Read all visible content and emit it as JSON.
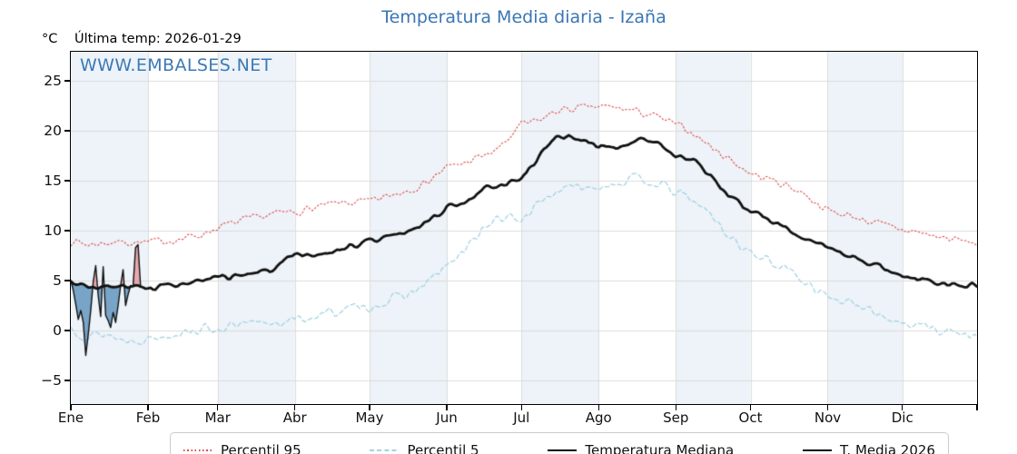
{
  "header": {
    "y_unit": "°C",
    "last_temp": "Última temp: 2026-01-29"
  },
  "watermark": "WWW.EMBALSES.NET",
  "colors": {
    "title": "#3a76b2",
    "watermark": "#3d79b5",
    "band": "#edf3f8",
    "grid": "#dcdcdc",
    "spine": "#000000",
    "tick_label": "#111111",
    "legend_border": "#cccccc",
    "p95": "#dd4b4b",
    "p5": "#a5d2e3",
    "median": "#111111",
    "t2026": "#111111",
    "fill_above": "rgba(224,80,90,0.45)",
    "fill_below": "rgba(70,130,180,0.70)"
  },
  "chart_data": {
    "type": "line",
    "title": "Temperatura Media diaria - Izaña",
    "x_axis": "day of year",
    "ylim": [
      -7.5,
      28.0
    ],
    "grid": true,
    "y_ticks": [
      25,
      20,
      15,
      10,
      5,
      0,
      -5
    ],
    "y_tick_labels": [
      "25",
      "20",
      "15",
      "10",
      "5",
      "0",
      "−5"
    ],
    "month_labels": [
      "Ene",
      "Feb",
      "Mar",
      "Abr",
      "May",
      "Jun",
      "Jul",
      "Ago",
      "Sep",
      "Oct",
      "Nov",
      "Dic"
    ],
    "month_start_days": [
      1,
      32,
      60,
      91,
      121,
      152,
      182,
      213,
      244,
      274,
      305,
      335
    ],
    "days_in_year": 365,
    "legend_position": "bottom",
    "series": [
      {
        "name": "Percentil 95",
        "type": "control_points",
        "style": "dotted",
        "width": 1.1,
        "color_key": "p95",
        "noise_amp": 0.55,
        "seed": 7,
        "days": [
          1,
          8,
          15,
          22,
          32,
          39,
          46,
          53,
          60,
          67,
          74,
          81,
          91,
          98,
          105,
          112,
          121,
          128,
          135,
          142,
          152,
          159,
          166,
          173,
          182,
          189,
          196,
          203,
          213,
          220,
          227,
          234,
          244,
          251,
          258,
          265,
          274,
          281,
          288,
          295,
          305,
          312,
          319,
          326,
          335,
          342,
          349,
          356,
          365
        ],
        "values": [
          9.0,
          8.6,
          8.8,
          8.9,
          8.8,
          9.0,
          9.2,
          9.6,
          10.3,
          10.8,
          11.2,
          11.6,
          11.9,
          12.2,
          12.6,
          12.8,
          12.9,
          13.4,
          14.0,
          14.6,
          16.3,
          16.8,
          17.4,
          18.2,
          20.6,
          21.0,
          22.0,
          22.2,
          22.4,
          22.3,
          22.0,
          21.6,
          20.6,
          19.8,
          18.4,
          17.3,
          15.7,
          15.2,
          14.6,
          13.8,
          12.0,
          11.6,
          11.2,
          10.6,
          10.1,
          9.8,
          9.4,
          9.1,
          8.7
        ]
      },
      {
        "name": "Percentil 5",
        "type": "control_points",
        "style": "dashed",
        "width": 1.3,
        "color_key": "p5",
        "noise_amp": 0.7,
        "seed": 13,
        "days": [
          1,
          8,
          15,
          22,
          32,
          39,
          46,
          53,
          60,
          67,
          74,
          81,
          91,
          98,
          105,
          112,
          121,
          128,
          135,
          142,
          152,
          159,
          166,
          173,
          182,
          189,
          196,
          203,
          213,
          220,
          227,
          234,
          244,
          251,
          258,
          265,
          274,
          281,
          288,
          295,
          305,
          312,
          319,
          326,
          335,
          342,
          349,
          356,
          365
        ],
        "values": [
          0.3,
          -0.6,
          -0.3,
          -1.0,
          -0.8,
          -0.5,
          0.0,
          0.1,
          0.2,
          0.4,
          0.6,
          0.8,
          1.0,
          1.4,
          1.8,
          2.1,
          2.4,
          2.9,
          3.5,
          4.3,
          6.5,
          7.8,
          10.2,
          11.2,
          11.1,
          12.8,
          14.0,
          14.3,
          14.5,
          14.8,
          15.1,
          15.0,
          13.8,
          13.0,
          11.6,
          9.5,
          7.8,
          7.0,
          6.2,
          5.2,
          3.4,
          2.8,
          2.2,
          1.6,
          0.8,
          0.5,
          0.2,
          -0.2,
          -0.7
        ]
      },
      {
        "name": "Temperatura Mediana",
        "type": "control_points",
        "style": "solid",
        "width": 2.8,
        "color_key": "median",
        "noise_amp": 0.4,
        "seed": 3,
        "days": [
          1,
          8,
          15,
          22,
          32,
          39,
          46,
          53,
          60,
          67,
          74,
          81,
          91,
          98,
          105,
          112,
          121,
          128,
          135,
          142,
          152,
          159,
          166,
          173,
          182,
          189,
          196,
          203,
          213,
          220,
          227,
          234,
          244,
          251,
          258,
          265,
          274,
          281,
          288,
          295,
          305,
          312,
          319,
          326,
          335,
          342,
          349,
          356,
          365
        ],
        "values": [
          4.9,
          4.5,
          4.3,
          4.4,
          4.3,
          4.5,
          4.6,
          4.9,
          5.2,
          5.5,
          5.7,
          6.0,
          7.4,
          7.5,
          7.8,
          8.4,
          9.0,
          9.4,
          9.8,
          10.6,
          12.3,
          13.0,
          14.0,
          14.6,
          15.2,
          17.5,
          19.2,
          19.4,
          18.4,
          18.2,
          18.8,
          19.2,
          17.4,
          17.0,
          15.6,
          13.3,
          12.0,
          11.2,
          10.4,
          9.4,
          8.1,
          7.6,
          7.0,
          6.4,
          5.4,
          5.2,
          4.9,
          4.6,
          4.7
        ]
      },
      {
        "name": "T. Media 2026",
        "type": "daily",
        "style": "solid",
        "width": 1.4,
        "color_key": "t2026",
        "start_day": 1,
        "values": [
          5.0,
          4.0,
          2.6,
          1.1,
          2.0,
          0.8,
          -2.5,
          -0.4,
          2.0,
          4.9,
          6.5,
          3.5,
          1.4,
          6.4,
          1.5,
          1.0,
          0.3,
          1.8,
          0.8,
          2.5,
          4.5,
          6.1,
          2.5,
          3.6,
          4.5,
          4.4,
          8.3,
          8.6,
          4.5
        ]
      }
    ],
    "fill_between": {
      "series_a": "T. Media 2026",
      "series_b": "Temperatura Mediana",
      "above_color_key": "fill_above",
      "below_color_key": "fill_below"
    }
  }
}
